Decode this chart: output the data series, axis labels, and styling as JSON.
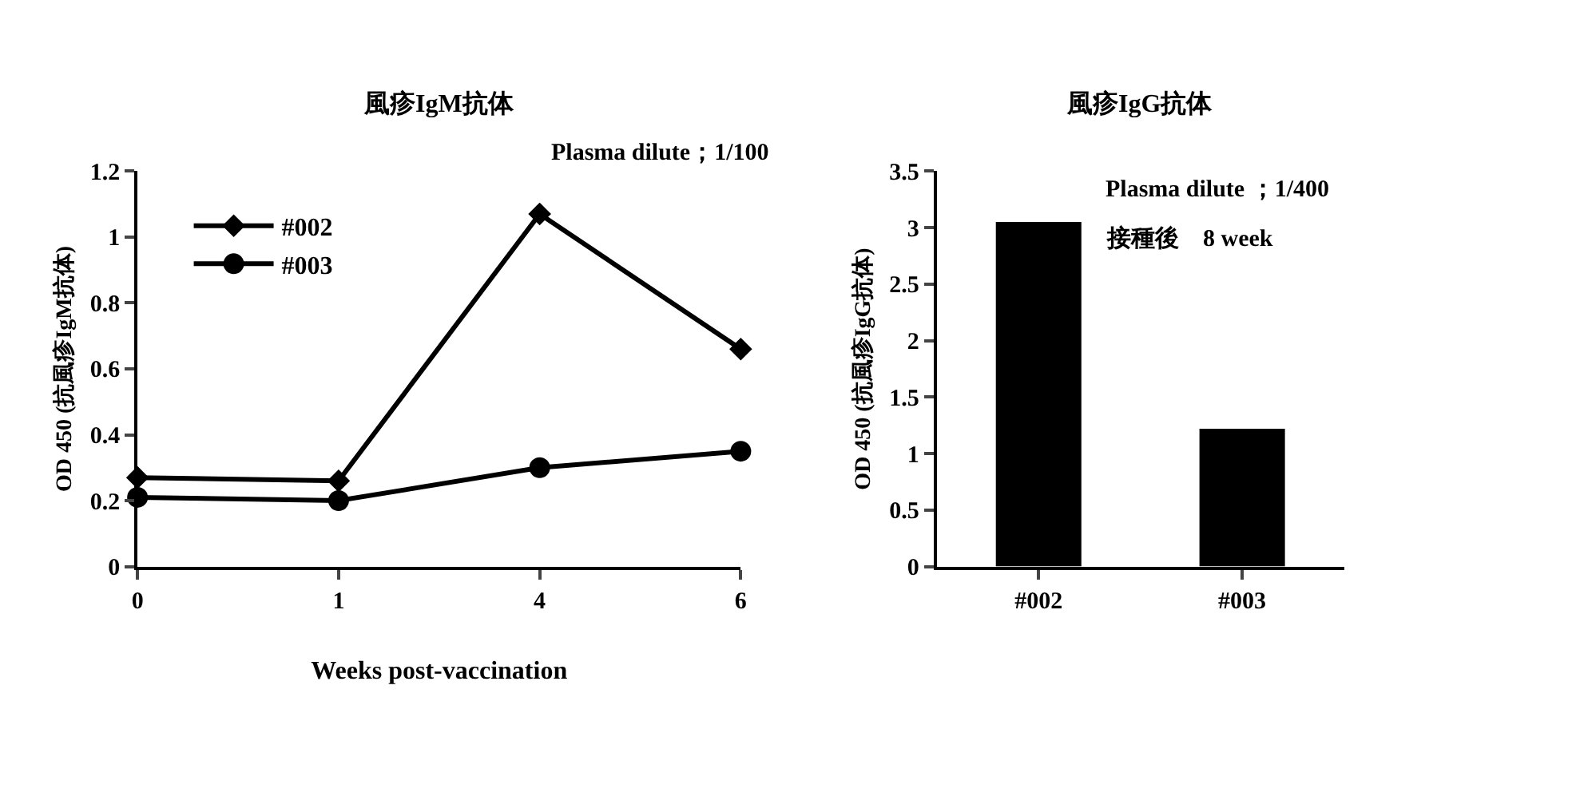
{
  "chart_data": [
    {
      "type": "line",
      "title": "風疹IgM抗体",
      "xlabel": "Weeks post-vaccination",
      "ylabel": "OD 450 (抗風疹IgM抗体)",
      "categories": [
        "0",
        "1",
        "4",
        "6"
      ],
      "series": [
        {
          "name": "#002",
          "color": "#000000",
          "marker": "diamond",
          "values": [
            0.27,
            0.26,
            1.07,
            0.66
          ]
        },
        {
          "name": "#003",
          "color": "#000000",
          "marker": "circle",
          "values": [
            0.21,
            0.2,
            0.3,
            0.35
          ]
        }
      ],
      "ylim": [
        0,
        1.2
      ],
      "yticks": [
        0,
        0.2,
        0.4,
        0.6,
        0.8,
        1,
        1.2
      ],
      "legend": "top left",
      "line_style": "solid",
      "annotations": [
        "Plasma dilute；1/100"
      ]
    },
    {
      "type": "bar",
      "title": "風疹IgG抗体",
      "ylabel": "OD 450 (抗風疹IgG抗体)",
      "categories": [
        "#002",
        "#003"
      ],
      "series": [
        {
          "color": "#000000",
          "values": [
            3.05,
            1.22
          ]
        }
      ],
      "ylim": [
        0,
        3.5
      ],
      "yticks": [
        0,
        0.5,
        1,
        1.5,
        2,
        2.5,
        3,
        3.5
      ],
      "annotations": [
        "Plasma dilute ；1/400",
        "接種後　8 week"
      ]
    }
  ]
}
